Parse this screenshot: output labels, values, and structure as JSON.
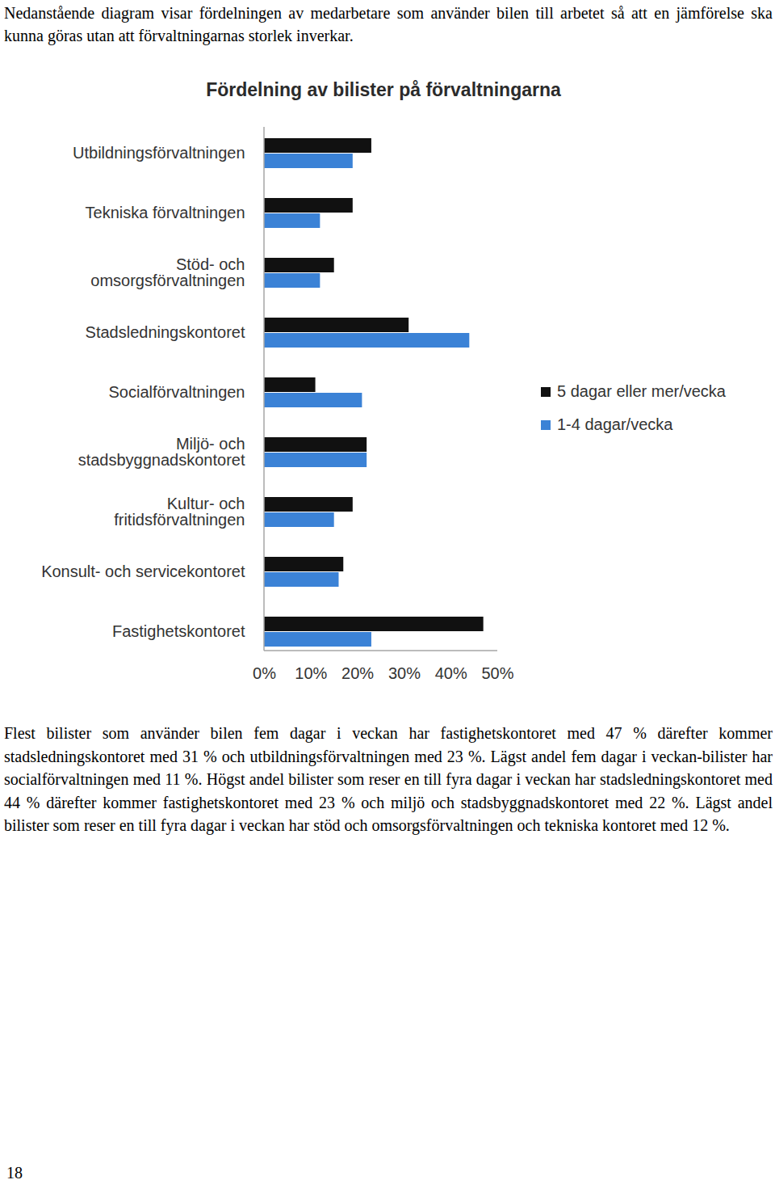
{
  "intro": "Nedanstående diagram visar fördelningen av medarbetare som använder bilen till arbetet så att en jämförelse ska kunna göras utan att förvaltningarnas storlek inverkar.",
  "chart_data": {
    "type": "bar",
    "orientation": "horizontal",
    "title": "Fördelning av bilister på förvaltningarna",
    "categories": [
      "Utbildningsförvaltningen",
      "Tekniska förvaltningen",
      "Stöd- och\nomsorgsförvaltningen",
      "Stadsledningskontoret",
      "Socialförvaltningen",
      "Miljö- och\nstadsbyggnadskontoret",
      "Kultur- och\nfritidsförvaltningen",
      "Konsult- och servicekontoret",
      "Fastighetskontoret"
    ],
    "series": [
      {
        "name": "5 dagar eller mer/vecka",
        "color": "#111111",
        "values": [
          23,
          19,
          15,
          31,
          11,
          22,
          19,
          17,
          47
        ]
      },
      {
        "name": "1-4 dagar/vecka",
        "color": "#3b82d6",
        "values": [
          19,
          12,
          12,
          44,
          21,
          22,
          15,
          16,
          23
        ]
      }
    ],
    "xlim": [
      0,
      50
    ],
    "xticks": [
      {
        "value": 0,
        "label": "0%"
      },
      {
        "value": 10,
        "label": "10%"
      },
      {
        "value": 20,
        "label": "20%"
      },
      {
        "value": 30,
        "label": "30%"
      },
      {
        "value": 40,
        "label": "40%"
      },
      {
        "value": 50,
        "label": "50%"
      }
    ],
    "grid": false,
    "legend": "right"
  },
  "body": "Flest bilister som använder bilen fem dagar i veckan har fastighetskontoret med 47 % därefter kommer stadsledningskontoret med 31 % och utbildningsförvaltningen med 23 %. Lägst andel fem dagar i veckan-bilister har socialförvaltningen med 11 %. Högst andel bilister som reser en till fyra dagar i veckan har stadsledningskontoret med 44 % därefter kommer fastighetskontoret med 23 % och miljö och stadsbyggnadskontoret med 22 %. Lägst andel bilister som reser en till fyra dagar i veckan har stöd och omsorgsförvaltningen och tekniska kontoret med 12 %.",
  "page_number": "18"
}
